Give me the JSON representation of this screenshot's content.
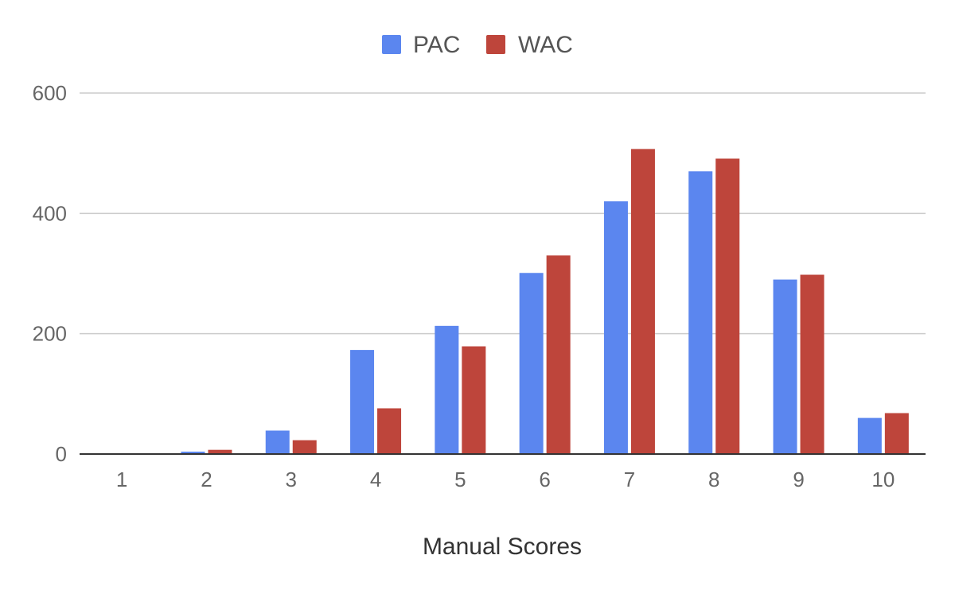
{
  "chart_data": {
    "type": "bar",
    "title": "",
    "xlabel": "Manual Scores",
    "ylabel": "",
    "categories": [
      "1",
      "2",
      "3",
      "4",
      "5",
      "6",
      "7",
      "8",
      "9",
      "10"
    ],
    "series": [
      {
        "name": "PAC",
        "color": "#5b86ef",
        "values": [
          1,
          4,
          39,
          173,
          213,
          301,
          420,
          470,
          290,
          60
        ]
      },
      {
        "name": "WAC",
        "color": "#be453b",
        "values": [
          1,
          7,
          23,
          76,
          179,
          330,
          507,
          491,
          298,
          68
        ]
      }
    ],
    "ylim": [
      0,
      600
    ],
    "yticks": [
      0,
      200,
      400,
      600
    ],
    "grid": true,
    "legend_position": "top-center"
  }
}
